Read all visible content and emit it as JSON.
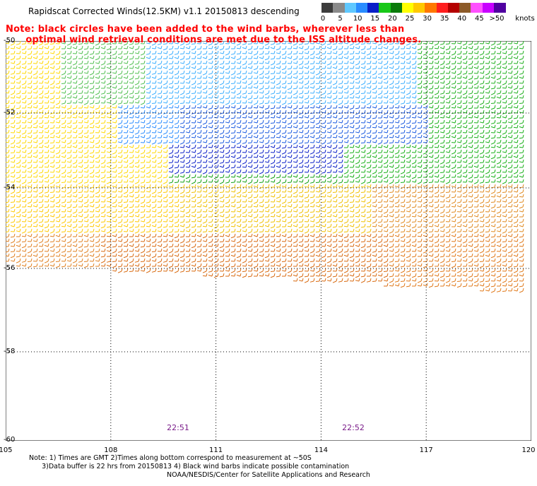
{
  "title": "Rapidscat Corrected Winds(12.5KM) v1.1 20150813 descending",
  "note_line1": "Note: black circles have been added to the wind barbs, wherever less than",
  "note_line2": "      optimal wind retrieval conditions are met due to the ISS altitude changes.",
  "colorbar": {
    "unit": "knots",
    "labels": [
      "0",
      "5",
      "10",
      "15",
      "20",
      "25",
      "30",
      "35",
      "40",
      "45",
      ">50"
    ],
    "colors": [
      "#3c3c3c",
      "#8a8a8a",
      "#5fc8ff",
      "#2a8cff",
      "#0a1fc8",
      "#18c818",
      "#0a7a0a",
      "#ffff00",
      "#ffc800",
      "#ff7800",
      "#ff1e1e",
      "#b40000",
      "#8c5a28",
      "#ff50ff",
      "#c800ff",
      "#5000a0"
    ]
  },
  "lat_labels": [
    "-50",
    "-52",
    "-54",
    "-56",
    "-58",
    "-60"
  ],
  "lon_labels": [
    "105",
    "108",
    "111",
    "114",
    "117",
    "120"
  ],
  "time_labels": [
    "22:51",
    "22:52"
  ],
  "footnote_line1": "Note: 1) Times are GMT 2)Times along bottom correspond to measurement at ~50S",
  "footnote_line2": "      3)Data buffer is 22 hrs from 20150813 4) Black wind barbs indicate possible contamination",
  "credit": "NOAA/NESDIS/Center for Satellite Applications and Research"
}
